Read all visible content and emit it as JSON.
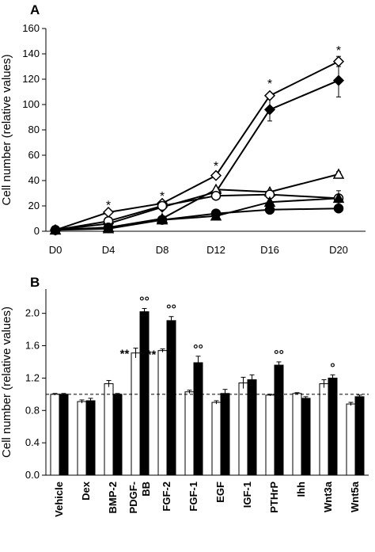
{
  "chart_data": [
    {
      "panel": "A",
      "type": "line",
      "ylabel": "Cell number (relative values)",
      "xlabel": "",
      "categories": [
        "D0",
        "D4",
        "D8",
        "D12",
        "D16",
        "D20"
      ],
      "yticks": [
        "0",
        "20",
        "40",
        "60",
        "80",
        "100",
        "120",
        "140",
        "160"
      ],
      "ylim": [
        0,
        160
      ],
      "grid": false,
      "series": [
        {
          "marker": "diamond-open",
          "values": [
            1,
            15,
            22,
            44,
            107,
            134
          ],
          "errors": [
            0,
            1,
            1,
            1,
            2,
            4
          ]
        },
        {
          "marker": "diamond-filled",
          "values": [
            1,
            6,
            19,
            31,
            96,
            119
          ],
          "errors": [
            0,
            1,
            1,
            1,
            9,
            13
          ]
        },
        {
          "marker": "triangle-open",
          "values": [
            1,
            3,
            10,
            33,
            31,
            45
          ],
          "errors": [
            0,
            0,
            1,
            1,
            1,
            2
          ]
        },
        {
          "marker": "circle-open",
          "values": [
            1,
            8,
            20,
            28,
            29,
            26
          ],
          "errors": [
            0,
            1,
            1,
            1,
            1,
            6
          ]
        },
        {
          "marker": "triangle-filled",
          "values": [
            1,
            2,
            9,
            12,
            23,
            26
          ],
          "errors": [
            0,
            0,
            0,
            1,
            1,
            1
          ]
        },
        {
          "marker": "circle-filled",
          "values": [
            1,
            3,
            9,
            14,
            17,
            18
          ],
          "errors": [
            0,
            0,
            0,
            1,
            1,
            1
          ]
        }
      ],
      "annotations": [
        {
          "category": "D4",
          "text": "*",
          "y": 21
        },
        {
          "category": "D8",
          "text": "*",
          "y": 28
        },
        {
          "category": "D12",
          "text": "*",
          "y": 52
        },
        {
          "category": "D16",
          "text": "*",
          "y": 117
        },
        {
          "category": "D20",
          "text": "*",
          "y": 143
        }
      ]
    },
    {
      "panel": "B",
      "type": "bar",
      "ylabel": "Cell number (relative values)",
      "xlabel": "",
      "categories": [
        "Vehicle",
        "Dex",
        "BMP-2",
        "PDGF-\nBB",
        "FGF-2",
        "FGF-1",
        "EGF",
        "IGF-1",
        "PTHrP",
        "Ihh",
        "Wnt3a",
        "Wnt5a"
      ],
      "yticks": [
        "0.0",
        "0.4",
        "0.8",
        "1.2",
        "1.6",
        "2.0"
      ],
      "ylim": [
        0,
        2.3
      ],
      "reference_line": 1.0,
      "grid": false,
      "series": [
        {
          "fill": "white",
          "values": [
            1.0,
            0.91,
            1.13,
            1.51,
            1.54,
            1.03,
            0.9,
            1.14,
            0.99,
            1.01,
            1.13,
            0.88
          ],
          "errors": [
            0.01,
            0.02,
            0.04,
            0.06,
            0.02,
            0.02,
            0.02,
            0.07,
            0.01,
            0.01,
            0.05,
            0.02
          ]
        },
        {
          "fill": "black",
          "values": [
            1.0,
            0.92,
            1.0,
            2.02,
            1.91,
            1.39,
            1.01,
            1.18,
            1.36,
            0.95,
            1.2,
            0.97
          ],
          "errors": [
            0.01,
            0.03,
            0.01,
            0.04,
            0.05,
            0.08,
            0.05,
            0.06,
            0.04,
            0.02,
            0.04,
            0.02
          ]
        }
      ],
      "annotations": [
        {
          "category": "PDGF-\nBB",
          "series": 0,
          "text": "**"
        },
        {
          "category": "FGF-2",
          "series": 0,
          "text": "**"
        },
        {
          "category": "PDGF-\nBB",
          "series": 1,
          "text": "°°"
        },
        {
          "category": "FGF-2",
          "series": 1,
          "text": "°°"
        },
        {
          "category": "FGF-1",
          "series": 1,
          "text": "°°"
        },
        {
          "category": "PTHrP",
          "series": 1,
          "text": "°°"
        },
        {
          "category": "Wnt3a",
          "series": 1,
          "text": "°"
        }
      ]
    }
  ],
  "panels": {
    "a_label": "A",
    "b_label": "B"
  }
}
